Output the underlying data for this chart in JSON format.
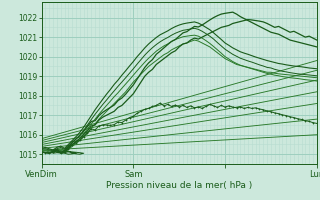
{
  "background_color": "#cce8dc",
  "grid_minor_color": "#b8ddd0",
  "grid_major_color": "#9ecfbf",
  "line_dark": "#1a5c1a",
  "line_mid": "#2a7a2a",
  "xlabel": "Pression niveau de la mer( hPa )",
  "ylim": [
    1014.5,
    1022.8
  ],
  "xlim": [
    0,
    72
  ],
  "yticks": [
    1015,
    1016,
    1017,
    1018,
    1019,
    1020,
    1021,
    1022
  ],
  "xtick_positions": [
    0,
    24,
    48,
    72
  ],
  "xtick_labels": [
    "VenDim",
    "Sam",
    "",
    "Lun"
  ],
  "fan_lines": [
    {
      "x0": 0,
      "y0": 1015.2,
      "x1": 72,
      "y1": 1016.0
    },
    {
      "x0": 0,
      "y0": 1015.3,
      "x1": 72,
      "y1": 1016.8
    },
    {
      "x0": 0,
      "y0": 1015.4,
      "x1": 72,
      "y1": 1017.6
    },
    {
      "x0": 0,
      "y0": 1015.5,
      "x1": 72,
      "y1": 1018.2
    },
    {
      "x0": 0,
      "y0": 1015.6,
      "x1": 72,
      "y1": 1018.8
    },
    {
      "x0": 0,
      "y0": 1015.7,
      "x1": 72,
      "y1": 1019.3
    },
    {
      "x0": 0,
      "y0": 1015.8,
      "x1": 72,
      "y1": 1019.8
    }
  ],
  "curves": [
    {
      "x": [
        0,
        1,
        2,
        3,
        4,
        5,
        6,
        7,
        8,
        9,
        10,
        11,
        12,
        13,
        14,
        15,
        16,
        17,
        18,
        19,
        20,
        21,
        22,
        23,
        24,
        25,
        26,
        27,
        28,
        29,
        30,
        31,
        32,
        33,
        34,
        35,
        36,
        37,
        38,
        39,
        40,
        41,
        42,
        43,
        44,
        45,
        46,
        47,
        48,
        49,
        50,
        51,
        52,
        53,
        54,
        55,
        56,
        57,
        58,
        59,
        60,
        61,
        62,
        63,
        64,
        65,
        66,
        67,
        68,
        69,
        70,
        71,
        72
      ],
      "y": [
        1015.15,
        1015.18,
        1015.12,
        1015.08,
        1015.15,
        1015.2,
        1015.1,
        1015.25,
        1015.4,
        1015.55,
        1015.7,
        1015.9,
        1016.1,
        1016.35,
        1016.55,
        1016.8,
        1017.0,
        1017.2,
        1017.4,
        1017.6,
        1017.8,
        1018.0,
        1018.2,
        1018.45,
        1018.7,
        1018.9,
        1019.1,
        1019.3,
        1019.5,
        1019.65,
        1019.8,
        1019.95,
        1020.1,
        1020.2,
        1020.35,
        1020.45,
        1020.55,
        1020.65,
        1020.7,
        1020.78,
        1020.85,
        1020.8,
        1020.7,
        1020.6,
        1020.5,
        1020.35,
        1020.2,
        1020.05,
        1019.9,
        1019.8,
        1019.7,
        1019.6,
        1019.55,
        1019.5,
        1019.45,
        1019.4,
        1019.35,
        1019.3,
        1019.25,
        1019.2,
        1019.2,
        1019.15,
        1019.12,
        1019.1,
        1019.08,
        1019.06,
        1019.04,
        1019.02,
        1019.0,
        1018.98,
        1018.96,
        1018.94,
        1018.92
      ],
      "lw": 0.7,
      "color": "#2a7a2a",
      "marker": false
    },
    {
      "x": [
        0,
        1,
        2,
        3,
        4,
        5,
        6,
        7,
        8,
        9,
        10,
        11,
        12,
        13,
        14,
        15,
        16,
        17,
        18,
        19,
        20,
        21,
        22,
        23,
        24,
        25,
        26,
        27,
        28,
        29,
        30,
        31,
        32,
        33,
        34,
        35,
        36,
        37,
        38,
        39,
        40,
        41,
        42,
        43,
        44,
        45,
        46,
        47,
        48,
        49,
        50,
        51,
        52,
        53,
        54,
        55,
        56,
        57,
        58,
        59,
        60,
        61,
        62,
        63,
        64,
        65,
        66,
        67,
        68,
        69,
        70,
        71,
        72
      ],
      "y": [
        1015.2,
        1015.22,
        1015.18,
        1015.14,
        1015.22,
        1015.28,
        1015.18,
        1015.35,
        1015.5,
        1015.65,
        1015.82,
        1016.05,
        1016.3,
        1016.55,
        1016.8,
        1017.05,
        1017.28,
        1017.5,
        1017.72,
        1017.95,
        1018.15,
        1018.38,
        1018.6,
        1018.82,
        1019.05,
        1019.28,
        1019.5,
        1019.72,
        1019.92,
        1020.1,
        1020.28,
        1020.42,
        1020.55,
        1020.65,
        1020.78,
        1020.88,
        1020.95,
        1021.02,
        1021.05,
        1021.08,
        1021.1,
        1021.05,
        1020.95,
        1020.82,
        1020.68,
        1020.52,
        1020.35,
        1020.18,
        1020.0,
        1019.88,
        1019.75,
        1019.65,
        1019.56,
        1019.5,
        1019.44,
        1019.38,
        1019.32,
        1019.26,
        1019.2,
        1019.14,
        1019.1,
        1019.05,
        1019.02,
        1018.98,
        1018.95,
        1018.92,
        1018.9,
        1018.88,
        1018.85,
        1018.82,
        1018.8,
        1018.78,
        1018.75
      ],
      "lw": 0.7,
      "color": "#2a7a2a",
      "marker": false
    },
    {
      "x": [
        0,
        1,
        2,
        3,
        4,
        5,
        6,
        7,
        8,
        9,
        10,
        11,
        12,
        13,
        14,
        15,
        16,
        17,
        18,
        19,
        20,
        21,
        22,
        23,
        24,
        25,
        26,
        27,
        28,
        29,
        30,
        31,
        32,
        33,
        34,
        35,
        36,
        37,
        38,
        39,
        40,
        41,
        42,
        43,
        44,
        45,
        46,
        47,
        48,
        49,
        50,
        51,
        52,
        53,
        54,
        55,
        56,
        57,
        58,
        59,
        60,
        61,
        62,
        63,
        64,
        65,
        66,
        67,
        68,
        69,
        70,
        71,
        72
      ],
      "y": [
        1015.25,
        1015.28,
        1015.22,
        1015.18,
        1015.28,
        1015.35,
        1015.25,
        1015.42,
        1015.6,
        1015.78,
        1015.98,
        1016.22,
        1016.5,
        1016.78,
        1017.05,
        1017.3,
        1017.55,
        1017.78,
        1018.02,
        1018.25,
        1018.48,
        1018.7,
        1018.92,
        1019.15,
        1019.38,
        1019.62,
        1019.85,
        1020.08,
        1020.28,
        1020.46,
        1020.62,
        1020.76,
        1020.88,
        1020.98,
        1021.1,
        1021.2,
        1021.28,
        1021.35,
        1021.38,
        1021.42,
        1021.45,
        1021.4,
        1021.3,
        1021.18,
        1021.05,
        1020.9,
        1020.72,
        1020.55,
        1020.38,
        1020.25,
        1020.12,
        1020.02,
        1019.92,
        1019.85,
        1019.78,
        1019.72,
        1019.65,
        1019.58,
        1019.52,
        1019.45,
        1019.42,
        1019.35,
        1019.3,
        1019.25,
        1019.22,
        1019.18,
        1019.15,
        1019.12,
        1019.1,
        1019.08,
        1019.06,
        1019.04,
        1019.02
      ],
      "lw": 0.7,
      "color": "#1a5c1a",
      "marker": false
    },
    {
      "x": [
        0,
        1,
        2,
        3,
        4,
        5,
        6,
        7,
        8,
        9,
        10,
        11,
        12,
        13,
        14,
        15,
        16,
        17,
        18,
        19,
        20,
        21,
        22,
        23,
        24,
        25,
        26,
        27,
        28,
        29,
        30,
        31,
        32,
        33,
        34,
        35,
        36,
        37,
        38,
        39,
        40,
        41,
        42,
        43,
        44,
        45,
        46,
        47,
        48,
        49,
        50,
        51,
        52,
        53,
        54,
        55,
        56,
        57,
        58,
        59,
        60,
        61,
        62,
        63,
        64,
        65,
        66,
        67,
        68,
        69,
        70,
        71,
        72
      ],
      "y": [
        1015.3,
        1015.35,
        1015.28,
        1015.22,
        1015.35,
        1015.42,
        1015.3,
        1015.5,
        1015.7,
        1015.9,
        1016.12,
        1016.38,
        1016.68,
        1016.98,
        1017.28,
        1017.55,
        1017.82,
        1018.08,
        1018.32,
        1018.58,
        1018.8,
        1019.05,
        1019.28,
        1019.52,
        1019.75,
        1020.0,
        1020.22,
        1020.45,
        1020.65,
        1020.82,
        1020.98,
        1021.12,
        1021.22,
        1021.32,
        1021.44,
        1021.54,
        1021.62,
        1021.68,
        1021.72,
        1021.75,
        1021.78,
        1021.72,
        1021.62,
        1021.5,
        1021.38,
        1021.22,
        1021.05,
        1020.88,
        1020.7,
        1020.58,
        1020.45,
        1020.35,
        1020.25,
        1020.18,
        1020.12,
        1020.05,
        1019.98,
        1019.92,
        1019.86,
        1019.8,
        1019.75,
        1019.7,
        1019.65,
        1019.62,
        1019.58,
        1019.55,
        1019.52,
        1019.5,
        1019.48,
        1019.45,
        1019.42,
        1019.4,
        1019.38
      ],
      "lw": 0.8,
      "color": "#1a5c1a",
      "marker": false
    }
  ],
  "main_curve_x": [
    0,
    1,
    2,
    3,
    4,
    5,
    6,
    7,
    8,
    9,
    10,
    11,
    12,
    13,
    14,
    15,
    16,
    17,
    18,
    19,
    20,
    21,
    22,
    23,
    24,
    25,
    26,
    27,
    28,
    29,
    30,
    31,
    32,
    33,
    34,
    35,
    36,
    37,
    38,
    39,
    40,
    41,
    42,
    43,
    44,
    45,
    46,
    47,
    48,
    49,
    50,
    51,
    52,
    53,
    54,
    55,
    56,
    57,
    58,
    59,
    60,
    61,
    62,
    63,
    64,
    65,
    66,
    67,
    68,
    69,
    70,
    71,
    72
  ],
  "main_curve_y": [
    1015.1,
    1015.08,
    1015.05,
    1015.1,
    1015.18,
    1015.08,
    1015.12,
    1015.3,
    1015.5,
    1015.65,
    1015.8,
    1016.0,
    1016.2,
    1016.45,
    1016.5,
    1016.75,
    1016.9,
    1017.0,
    1017.1,
    1017.2,
    1017.4,
    1017.5,
    1017.7,
    1017.9,
    1018.1,
    1018.4,
    1018.7,
    1019.0,
    1019.2,
    1019.35,
    1019.6,
    1019.75,
    1019.9,
    1020.05,
    1020.2,
    1020.3,
    1020.5,
    1020.65,
    1020.7,
    1020.85,
    1020.95,
    1020.9,
    1021.0,
    1021.1,
    1021.2,
    1021.3,
    1021.4,
    1021.5,
    1021.55,
    1021.6,
    1021.7,
    1021.75,
    1021.8,
    1021.85,
    1021.9,
    1021.88,
    1021.85,
    1021.82,
    1021.78,
    1021.7,
    1021.6,
    1021.5,
    1021.55,
    1021.45,
    1021.35,
    1021.25,
    1021.3,
    1021.2,
    1021.1,
    1021.0,
    1021.05,
    1020.95,
    1020.85
  ],
  "main_curve_y2": [
    1015.12,
    1015.1,
    1015.08,
    1015.15,
    1015.25,
    1015.1,
    1015.18,
    1015.38,
    1015.6,
    1015.78,
    1015.95,
    1016.18,
    1016.42,
    1016.68,
    1016.72,
    1016.98,
    1017.15,
    1017.28,
    1017.4,
    1017.52,
    1017.75,
    1017.88,
    1018.08,
    1018.32,
    1018.55,
    1018.85,
    1019.15,
    1019.45,
    1019.68,
    1019.85,
    1020.12,
    1020.28,
    1020.45,
    1020.62,
    1020.78,
    1020.88,
    1021.05,
    1021.22,
    1021.28,
    1021.42,
    1021.55,
    1021.52,
    1021.62,
    1021.75,
    1021.88,
    1022.0,
    1022.1,
    1022.18,
    1022.22,
    1022.25,
    1022.28,
    1022.18,
    1022.05,
    1021.95,
    1021.85,
    1021.75,
    1021.65,
    1021.55,
    1021.45,
    1021.35,
    1021.25,
    1021.2,
    1021.15,
    1021.05,
    1020.95,
    1020.85,
    1020.8,
    1020.75,
    1020.7,
    1020.65,
    1020.6,
    1020.55,
    1020.5
  ],
  "wiggly_x": [
    0,
    1,
    2,
    3,
    4,
    5,
    6,
    7,
    8,
    9,
    10,
    11,
    12,
    13,
    14,
    15,
    16,
    17,
    18,
    19,
    20,
    21,
    22,
    23,
    24,
    25,
    26,
    27,
    28,
    29,
    30,
    31,
    32,
    33,
    34,
    35,
    36,
    37,
    38,
    39,
    40,
    41,
    42,
    43,
    44,
    45,
    46,
    47,
    48,
    49,
    50,
    51,
    52,
    53,
    54,
    55,
    56,
    57,
    58,
    59,
    60,
    61,
    62,
    63,
    64,
    65,
    66,
    67,
    68,
    69,
    70,
    71,
    72
  ],
  "wiggly_y": [
    1015.1,
    1015.08,
    1015.05,
    1015.12,
    1015.2,
    1015.05,
    1015.1,
    1015.28,
    1015.48,
    1015.6,
    1015.72,
    1015.9,
    1016.08,
    1016.3,
    1016.25,
    1016.45,
    1016.5,
    1016.5,
    1016.48,
    1016.52,
    1016.65,
    1016.62,
    1016.75,
    1016.88,
    1016.95,
    1017.1,
    1017.2,
    1017.3,
    1017.35,
    1017.45,
    1017.5,
    1017.62,
    1017.48,
    1017.55,
    1017.45,
    1017.52,
    1017.42,
    1017.5,
    1017.4,
    1017.48,
    1017.38,
    1017.42,
    1017.35,
    1017.45,
    1017.55,
    1017.48,
    1017.4,
    1017.5,
    1017.42,
    1017.48,
    1017.42,
    1017.38,
    1017.42,
    1017.35,
    1017.4,
    1017.35,
    1017.38,
    1017.32,
    1017.28,
    1017.22,
    1017.18,
    1017.12,
    1017.08,
    1017.02,
    1016.98,
    1016.92,
    1016.88,
    1016.82,
    1016.78,
    1016.72,
    1016.68,
    1016.62,
    1016.58
  ]
}
